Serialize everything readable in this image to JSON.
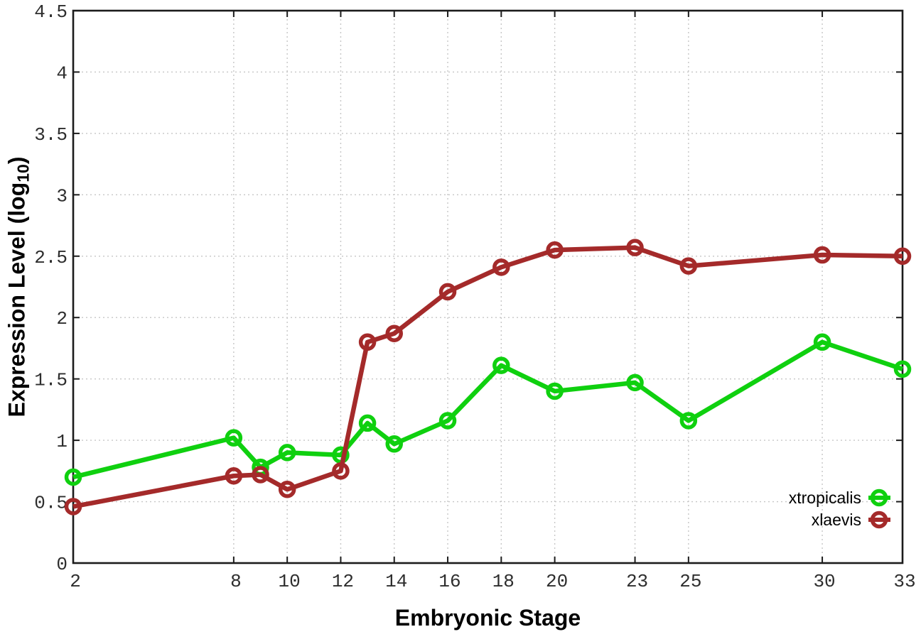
{
  "page": {
    "background": "#ffffff"
  },
  "chart_data": {
    "type": "line",
    "title": "",
    "xlabel": "Embryonic Stage",
    "ylabel": "Expression Level (log10)",
    "ylabel_main": "Expression Level (log",
    "ylabel_sub": "10",
    "ylabel_close": ")",
    "xlim": [
      2,
      33
    ],
    "ylim": [
      0,
      4.5
    ],
    "x_ticks": [
      2,
      8,
      10,
      12,
      14,
      16,
      18,
      20,
      23,
      25,
      30,
      33
    ],
    "x_tick_labels": [
      "2",
      "8",
      "10",
      "12",
      "14",
      "16",
      "18",
      "20",
      "23",
      "25",
      "30",
      "33"
    ],
    "y_ticks": [
      0,
      0.5,
      1,
      1.5,
      2,
      2.5,
      3,
      3.5,
      4,
      4.5
    ],
    "y_tick_labels": [
      "0",
      "0.5",
      "1",
      "1.5",
      "2",
      "2.5",
      "3",
      "3.5",
      "4",
      "4.5"
    ],
    "grid": true,
    "legend_position": "bottom-right-inside",
    "x": [
      2,
      8,
      9,
      10,
      12,
      13,
      14,
      16,
      18,
      20,
      23,
      25,
      30,
      33
    ],
    "series": [
      {
        "name": "xtropicalis",
        "color": "#0FD00F",
        "values": [
          0.7,
          1.02,
          0.78,
          0.9,
          0.88,
          1.14,
          0.97,
          1.16,
          1.61,
          1.4,
          1.47,
          1.16,
          1.8,
          1.58
        ]
      },
      {
        "name": "xlaevis",
        "color": "#A42A2A",
        "values": [
          0.46,
          0.71,
          0.72,
          0.6,
          0.75,
          1.8,
          1.87,
          2.21,
          2.41,
          2.55,
          2.57,
          2.42,
          2.51,
          2.5
        ]
      }
    ]
  },
  "styles": {
    "axis_color": "#1c1c1c",
    "grid_color": "#c6c6c6",
    "tick_label_color": "#2e2e2e",
    "marker": "open-circle"
  }
}
